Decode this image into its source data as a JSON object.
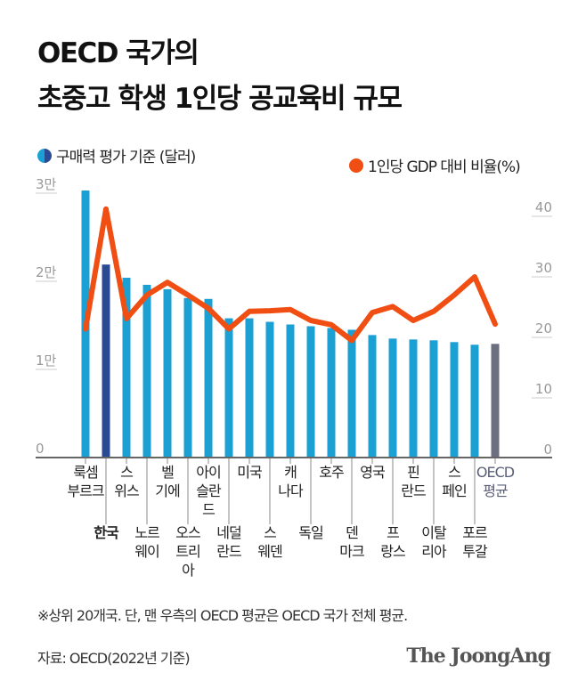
{
  "title": {
    "line1": "OECD 국가의",
    "line2": "초중고 학생 1인당 공교육비 규모"
  },
  "legend": {
    "bars": "구매력 평가 기준 (달러)",
    "line": "1인당 GDP 대비 비율(%)"
  },
  "chart_data": {
    "type": "bar+line",
    "categories": [
      [
        "룩셈",
        "부르크"
      ],
      [
        "한국"
      ],
      [
        "스",
        "위스"
      ],
      [
        "노르",
        "웨이"
      ],
      [
        "벨",
        "기에"
      ],
      [
        "오스",
        "트리",
        "아"
      ],
      [
        "아이",
        "슬란",
        "드"
      ],
      [
        "네덜",
        "란드"
      ],
      [
        "미국"
      ],
      [
        "스",
        "웨덴"
      ],
      [
        "캐",
        "나다"
      ],
      [
        "독일"
      ],
      [
        "호주"
      ],
      [
        "덴",
        "마크"
      ],
      [
        "영국"
      ],
      [
        "프",
        "랑스"
      ],
      [
        "핀",
        "란드"
      ],
      [
        "이탈",
        "리아"
      ],
      [
        "스",
        "페인"
      ],
      [
        "포르",
        "투갈"
      ],
      [
        "OECD",
        "평균"
      ]
    ],
    "bar_series": {
      "name": "구매력 평가 기준 (달러)",
      "values": [
        30200,
        21800,
        20300,
        19500,
        19000,
        18000,
        17900,
        15700,
        15700,
        15300,
        15000,
        14800,
        14600,
        14400,
        13800,
        13400,
        13300,
        13200,
        13000,
        12700,
        12800
      ]
    },
    "line_series": {
      "name": "1인당 GDP 대비 비율(%)",
      "values": [
        21.1,
        40.9,
        22.8,
        26.7,
        28.8,
        26.7,
        24.5,
        21.1,
        24.0,
        24.1,
        24.3,
        22.5,
        21.8,
        19.2,
        23.8,
        24.8,
        22.5,
        24.0,
        26.7,
        29.7,
        21.9
      ]
    },
    "left_axis": {
      "ticks": [
        0,
        10000,
        20000,
        30000
      ],
      "tick_labels": [
        "0",
        "1만",
        "2만",
        "3만"
      ],
      "range": [
        0,
        30000
      ]
    },
    "right_axis": {
      "ticks": [
        0,
        10,
        20,
        30,
        40
      ],
      "tick_labels": [
        "0",
        "10",
        "20",
        "30",
        "40"
      ],
      "range": [
        0,
        40
      ]
    },
    "highlight": {
      "index": 1,
      "label_bold": true
    },
    "colors": {
      "bar": "#1ba0d4",
      "highlight_bar": "#2a4a94",
      "average_bar": "#6b6f80",
      "line": "#f04e12",
      "average_label": "#5a5f78"
    }
  },
  "footnote": "※상위 20개국. 단, 맨 우측의 OECD 평균은 OECD 국가 전체 평균.",
  "source": "자료: OECD(2022년 기준)",
  "logo": "The JoongAng"
}
